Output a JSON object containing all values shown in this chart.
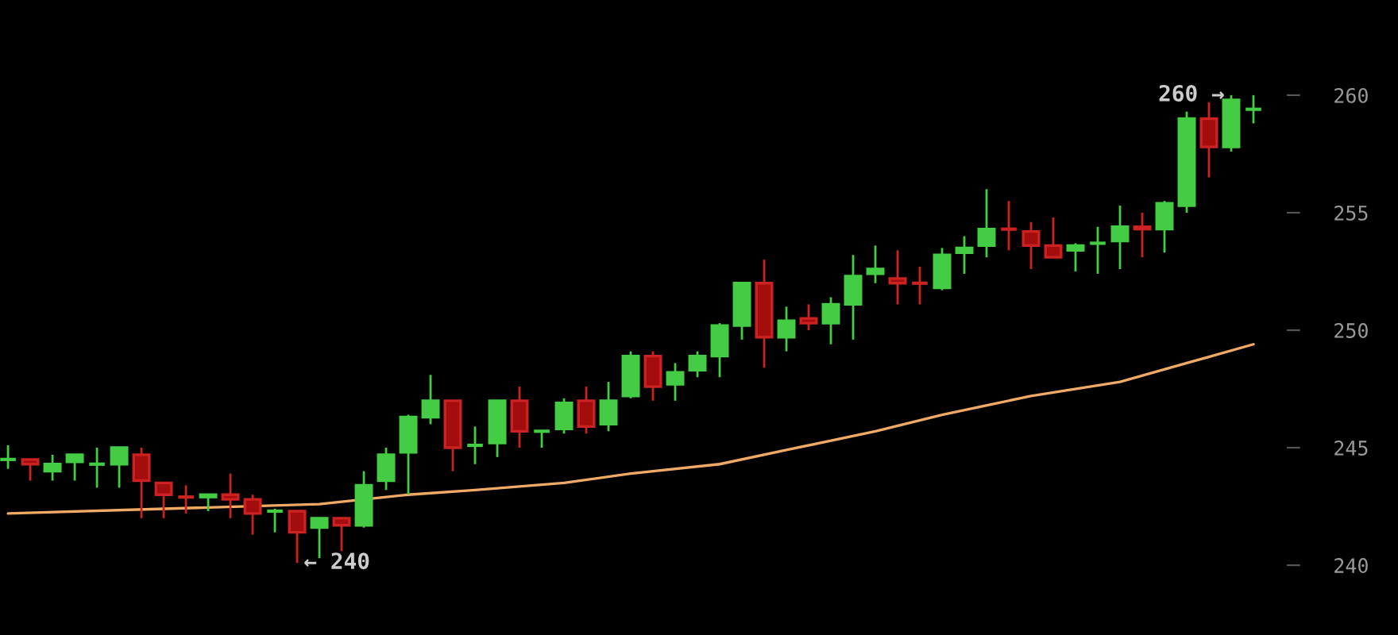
{
  "chart_data": {
    "type": "candlestick",
    "categories": [
      null,
      null,
      null,
      null,
      null,
      null,
      null,
      null,
      null,
      null,
      null,
      null,
      null,
      null,
      null,
      null,
      null,
      null,
      null,
      null,
      null,
      null,
      null,
      null,
      null,
      null,
      null,
      null,
      null,
      null,
      null,
      null,
      null,
      null,
      null,
      null,
      null,
      null,
      null,
      null,
      null,
      null,
      null,
      null,
      null,
      null,
      null,
      null,
      null,
      null,
      null,
      null,
      null,
      null,
      null,
      null,
      null
    ],
    "ohlc": [
      [
        244.5,
        245.1,
        244.1,
        244.5
      ],
      [
        244.5,
        244.5,
        243.6,
        244.3
      ],
      [
        244.0,
        244.7,
        243.6,
        244.3
      ],
      [
        244.4,
        244.7,
        243.6,
        244.7
      ],
      [
        244.3,
        245.0,
        243.3,
        244.3
      ],
      [
        244.3,
        245.0,
        243.3,
        245.0
      ],
      [
        244.7,
        245.0,
        242.0,
        243.6
      ],
      [
        243.5,
        243.5,
        242.0,
        243.0
      ],
      [
        242.9,
        243.4,
        242.2,
        242.9
      ],
      [
        242.9,
        243.0,
        242.3,
        243.0
      ],
      [
        243.0,
        243.9,
        242.0,
        242.8
      ],
      [
        242.8,
        243.0,
        241.3,
        242.2
      ],
      [
        242.3,
        242.4,
        241.4,
        242.3
      ],
      [
        242.3,
        242.3,
        240.1,
        241.4
      ],
      [
        241.6,
        242.0,
        240.3,
        242.0
      ],
      [
        242.0,
        242.0,
        240.6,
        241.7
      ],
      [
        241.7,
        244.0,
        241.6,
        243.4
      ],
      [
        243.6,
        245.0,
        243.2,
        244.7
      ],
      [
        244.8,
        246.4,
        243.0,
        246.3
      ],
      [
        246.3,
        248.1,
        246.0,
        247.0
      ],
      [
        247.0,
        247.0,
        244.0,
        245.0
      ],
      [
        245.1,
        245.9,
        244.3,
        245.1
      ],
      [
        245.2,
        247.0,
        244.6,
        247.0
      ],
      [
        247.0,
        247.6,
        245.0,
        245.7
      ],
      [
        245.7,
        245.7,
        245.0,
        245.7
      ],
      [
        245.8,
        247.1,
        245.6,
        246.9
      ],
      [
        247.0,
        247.6,
        245.6,
        245.9
      ],
      [
        246.0,
        247.8,
        245.7,
        247.0
      ],
      [
        247.2,
        249.1,
        247.1,
        248.9
      ],
      [
        248.9,
        249.1,
        247.0,
        247.6
      ],
      [
        247.7,
        248.6,
        247.0,
        248.2
      ],
      [
        248.3,
        249.1,
        248.0,
        248.9
      ],
      [
        248.9,
        250.3,
        248.0,
        250.2
      ],
      [
        250.2,
        252.0,
        249.6,
        252.0
      ],
      [
        252.0,
        253.0,
        248.4,
        249.7
      ],
      [
        249.7,
        251.0,
        249.1,
        250.4
      ],
      [
        250.5,
        251.1,
        250.0,
        250.3
      ],
      [
        250.3,
        251.4,
        249.4,
        251.1
      ],
      [
        251.1,
        253.2,
        249.6,
        252.3
      ],
      [
        252.4,
        253.6,
        252.0,
        252.6
      ],
      [
        252.2,
        253.4,
        251.1,
        252.0
      ],
      [
        252.0,
        252.7,
        251.1,
        252.0
      ],
      [
        251.8,
        253.5,
        251.7,
        253.2
      ],
      [
        253.3,
        254.0,
        252.4,
        253.5
      ],
      [
        253.6,
        256.0,
        253.1,
        254.3
      ],
      [
        254.3,
        255.5,
        253.4,
        254.3
      ],
      [
        254.2,
        254.6,
        252.6,
        253.6
      ],
      [
        253.6,
        254.8,
        253.1,
        253.1
      ],
      [
        253.4,
        253.7,
        252.5,
        253.6
      ],
      [
        253.7,
        254.4,
        252.4,
        253.7
      ],
      [
        253.8,
        255.3,
        252.6,
        254.4
      ],
      [
        254.4,
        255.0,
        253.1,
        254.3
      ],
      [
        254.3,
        255.5,
        253.3,
        255.4
      ],
      [
        255.3,
        259.3,
        255.0,
        259.0
      ],
      [
        259.0,
        259.7,
        256.5,
        257.8
      ],
      [
        257.8,
        260.0,
        257.6,
        259.8
      ],
      [
        259.4,
        260.0,
        258.8,
        259.4
      ]
    ],
    "colors": [
      "#44cc44",
      "#cc2222",
      "#44cc44",
      "#44cc44",
      "#44cc44",
      "#44cc44",
      "#cc2222",
      "#cc2222",
      "#cc2222",
      "#44cc44",
      "#cc2222",
      "#cc2222",
      "#44cc44",
      "#cc2222",
      "#44cc44",
      "#cc2222",
      "#44cc44",
      "#44cc44",
      "#44cc44",
      "#44cc44",
      "#cc2222",
      "#44cc44",
      "#44cc44",
      "#cc2222",
      "#44cc44",
      "#44cc44",
      "#cc2222",
      "#44cc44",
      "#44cc44",
      "#cc2222",
      "#44cc44",
      "#44cc44",
      "#44cc44",
      "#44cc44",
      "#cc2222",
      "#44cc44",
      "#cc2222",
      "#44cc44",
      "#44cc44",
      "#44cc44",
      "#cc2222",
      "#cc2222",
      "#44cc44",
      "#44cc44",
      "#44cc44",
      "#cc2222",
      "#cc2222",
      "#cc2222",
      "#44cc44",
      "#44cc44",
      "#44cc44",
      "#cc2222",
      "#44cc44",
      "#44cc44",
      "#cc2222",
      "#44cc44",
      "#44cc44"
    ],
    "series": [
      {
        "type": "line",
        "color": "#f0aa66",
        "values": [
          242.2,
          null,
          null,
          null,
          null,
          null,
          null,
          242.4,
          null,
          null,
          null,
          null,
          null,
          null,
          242.6,
          null,
          null,
          null,
          243.0,
          null,
          null,
          243.2,
          null,
          null,
          null,
          243.5,
          null,
          null,
          243.9,
          null,
          null,
          null,
          244.3,
          null,
          null,
          244.9,
          null,
          null,
          null,
          245.7,
          null,
          null,
          246.4,
          null,
          null,
          null,
          247.2,
          null,
          null,
          null,
          247.8,
          null,
          null,
          248.6,
          null,
          null,
          249.4
        ]
      }
    ],
    "ylim": [
      237.03,
      264.05
    ],
    "yticks": [
      240,
      245,
      250,
      255,
      260
    ],
    "tick_labels": "y",
    "grid": false,
    "annotations": [
      "← 240",
      "260 →"
    ]
  }
}
